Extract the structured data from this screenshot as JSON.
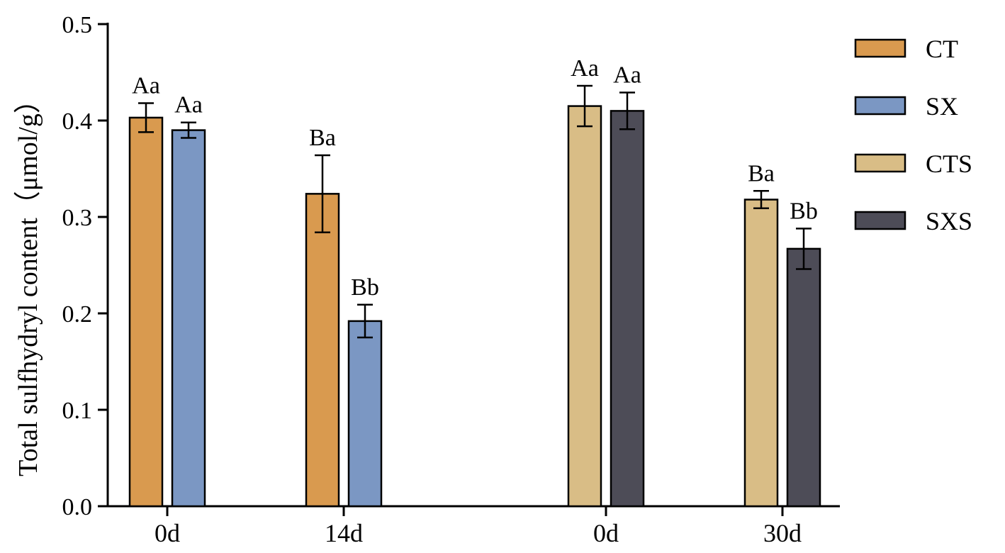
{
  "chart_data": {
    "type": "bar",
    "ylabel": "Total sulfhydryl content（μmol/g）",
    "ylim": [
      0,
      0.5
    ],
    "yticks": [
      "0.0",
      "0.1",
      "0.2",
      "0.3",
      "0.4",
      "0.5"
    ],
    "grid": false,
    "legend_position": "right",
    "legend": [
      {
        "name": "CT",
        "color": "#d99a4f"
      },
      {
        "name": "SX",
        "color": "#7b97c3"
      },
      {
        "name": "CTS",
        "color": "#d9bd86"
      },
      {
        "name": "SXS",
        "color": "#4d4c57"
      }
    ],
    "groups": [
      {
        "label": "0d",
        "bars": [
          {
            "series": "CT",
            "value": 0.403,
            "error": 0.015,
            "sig": "Aa"
          },
          {
            "series": "SX",
            "value": 0.39,
            "error": 0.008,
            "sig": "Aa"
          }
        ]
      },
      {
        "label": "14d",
        "bars": [
          {
            "series": "CT",
            "value": 0.324,
            "error": 0.04,
            "sig": "Ba"
          },
          {
            "series": "SX",
            "value": 0.192,
            "error": 0.017,
            "sig": "Bb"
          }
        ]
      },
      {
        "label": "0d",
        "bars": [
          {
            "series": "CTS",
            "value": 0.415,
            "error": 0.021,
            "sig": "Aa"
          },
          {
            "series": "SXS",
            "value": 0.41,
            "error": 0.019,
            "sig": "Aa"
          }
        ]
      },
      {
        "label": "30d",
        "bars": [
          {
            "series": "CTS",
            "value": 0.318,
            "error": 0.009,
            "sig": "Ba"
          },
          {
            "series": "SXS",
            "value": 0.267,
            "error": 0.021,
            "sig": "Bb"
          }
        ]
      }
    ]
  }
}
